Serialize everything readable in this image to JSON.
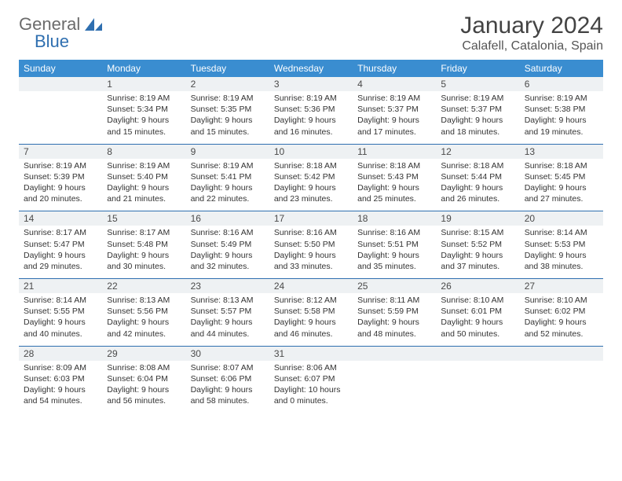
{
  "brand": {
    "word1": "General",
    "word2": "Blue"
  },
  "title": "January 2024",
  "location": "Calafell, Catalonia, Spain",
  "colors": {
    "header_bg": "#3a8dd0",
    "header_text": "#ffffff",
    "daynum_bg": "#eef1f3",
    "divider": "#2f6fb0",
    "text": "#333333",
    "logo_grey": "#6b6b6b",
    "logo_blue": "#2f6fb0",
    "page_bg": "#ffffff"
  },
  "typography": {
    "title_fontsize": 30,
    "location_fontsize": 16,
    "dayheader_fontsize": 12,
    "daynum_fontsize": 12,
    "detail_fontsize": 10.5
  },
  "day_headers": [
    "Sunday",
    "Monday",
    "Tuesday",
    "Wednesday",
    "Thursday",
    "Friday",
    "Saturday"
  ],
  "weeks": [
    [
      null,
      {
        "n": "1",
        "sunrise": "8:19 AM",
        "sunset": "5:34 PM",
        "daylight": "9 hours and 15 minutes."
      },
      {
        "n": "2",
        "sunrise": "8:19 AM",
        "sunset": "5:35 PM",
        "daylight": "9 hours and 15 minutes."
      },
      {
        "n": "3",
        "sunrise": "8:19 AM",
        "sunset": "5:36 PM",
        "daylight": "9 hours and 16 minutes."
      },
      {
        "n": "4",
        "sunrise": "8:19 AM",
        "sunset": "5:37 PM",
        "daylight": "9 hours and 17 minutes."
      },
      {
        "n": "5",
        "sunrise": "8:19 AM",
        "sunset": "5:37 PM",
        "daylight": "9 hours and 18 minutes."
      },
      {
        "n": "6",
        "sunrise": "8:19 AM",
        "sunset": "5:38 PM",
        "daylight": "9 hours and 19 minutes."
      }
    ],
    [
      {
        "n": "7",
        "sunrise": "8:19 AM",
        "sunset": "5:39 PM",
        "daylight": "9 hours and 20 minutes."
      },
      {
        "n": "8",
        "sunrise": "8:19 AM",
        "sunset": "5:40 PM",
        "daylight": "9 hours and 21 minutes."
      },
      {
        "n": "9",
        "sunrise": "8:19 AM",
        "sunset": "5:41 PM",
        "daylight": "9 hours and 22 minutes."
      },
      {
        "n": "10",
        "sunrise": "8:18 AM",
        "sunset": "5:42 PM",
        "daylight": "9 hours and 23 minutes."
      },
      {
        "n": "11",
        "sunrise": "8:18 AM",
        "sunset": "5:43 PM",
        "daylight": "9 hours and 25 minutes."
      },
      {
        "n": "12",
        "sunrise": "8:18 AM",
        "sunset": "5:44 PM",
        "daylight": "9 hours and 26 minutes."
      },
      {
        "n": "13",
        "sunrise": "8:18 AM",
        "sunset": "5:45 PM",
        "daylight": "9 hours and 27 minutes."
      }
    ],
    [
      {
        "n": "14",
        "sunrise": "8:17 AM",
        "sunset": "5:47 PM",
        "daylight": "9 hours and 29 minutes."
      },
      {
        "n": "15",
        "sunrise": "8:17 AM",
        "sunset": "5:48 PM",
        "daylight": "9 hours and 30 minutes."
      },
      {
        "n": "16",
        "sunrise": "8:16 AM",
        "sunset": "5:49 PM",
        "daylight": "9 hours and 32 minutes."
      },
      {
        "n": "17",
        "sunrise": "8:16 AM",
        "sunset": "5:50 PM",
        "daylight": "9 hours and 33 minutes."
      },
      {
        "n": "18",
        "sunrise": "8:16 AM",
        "sunset": "5:51 PM",
        "daylight": "9 hours and 35 minutes."
      },
      {
        "n": "19",
        "sunrise": "8:15 AM",
        "sunset": "5:52 PM",
        "daylight": "9 hours and 37 minutes."
      },
      {
        "n": "20",
        "sunrise": "8:14 AM",
        "sunset": "5:53 PM",
        "daylight": "9 hours and 38 minutes."
      }
    ],
    [
      {
        "n": "21",
        "sunrise": "8:14 AM",
        "sunset": "5:55 PM",
        "daylight": "9 hours and 40 minutes."
      },
      {
        "n": "22",
        "sunrise": "8:13 AM",
        "sunset": "5:56 PM",
        "daylight": "9 hours and 42 minutes."
      },
      {
        "n": "23",
        "sunrise": "8:13 AM",
        "sunset": "5:57 PM",
        "daylight": "9 hours and 44 minutes."
      },
      {
        "n": "24",
        "sunrise": "8:12 AM",
        "sunset": "5:58 PM",
        "daylight": "9 hours and 46 minutes."
      },
      {
        "n": "25",
        "sunrise": "8:11 AM",
        "sunset": "5:59 PM",
        "daylight": "9 hours and 48 minutes."
      },
      {
        "n": "26",
        "sunrise": "8:10 AM",
        "sunset": "6:01 PM",
        "daylight": "9 hours and 50 minutes."
      },
      {
        "n": "27",
        "sunrise": "8:10 AM",
        "sunset": "6:02 PM",
        "daylight": "9 hours and 52 minutes."
      }
    ],
    [
      {
        "n": "28",
        "sunrise": "8:09 AM",
        "sunset": "6:03 PM",
        "daylight": "9 hours and 54 minutes."
      },
      {
        "n": "29",
        "sunrise": "8:08 AM",
        "sunset": "6:04 PM",
        "daylight": "9 hours and 56 minutes."
      },
      {
        "n": "30",
        "sunrise": "8:07 AM",
        "sunset": "6:06 PM",
        "daylight": "9 hours and 58 minutes."
      },
      {
        "n": "31",
        "sunrise": "8:06 AM",
        "sunset": "6:07 PM",
        "daylight": "10 hours and 0 minutes."
      },
      null,
      null,
      null
    ]
  ],
  "labels": {
    "sunrise": "Sunrise:",
    "sunset": "Sunset:",
    "daylight": "Daylight:"
  }
}
